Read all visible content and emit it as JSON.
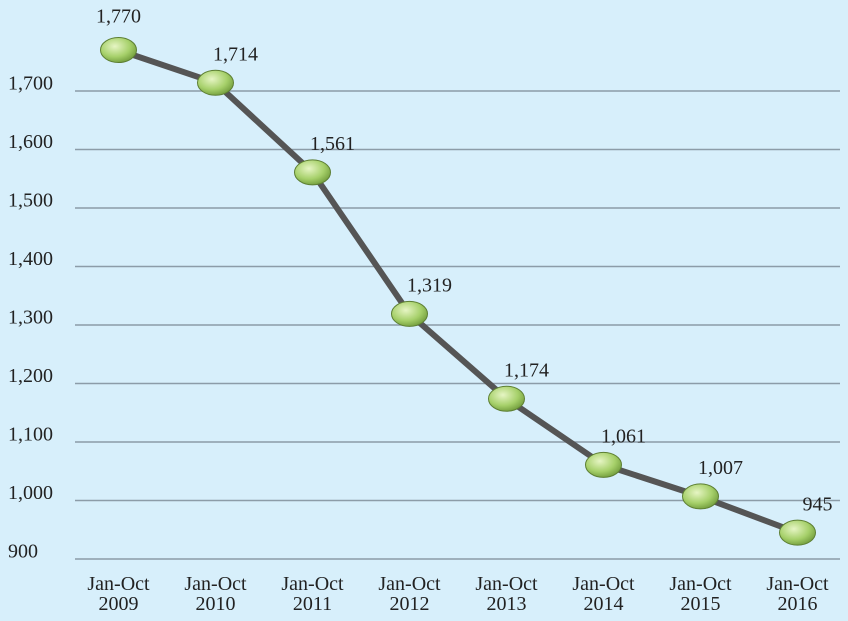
{
  "chart_data": {
    "type": "line",
    "categories": [
      "Jan-Oct 2009",
      "Jan-Oct 2010",
      "Jan-Oct 2011",
      "Jan-Oct 2012",
      "Jan-Oct 2013",
      "Jan-Oct 2014",
      "Jan-Oct 2015",
      "Jan-Oct 2016"
    ],
    "values": [
      1770,
      1714,
      1561,
      1319,
      1174,
      1061,
      1007,
      945
    ],
    "value_labels": [
      "1,770",
      "1,714",
      "1,561",
      "1,319",
      "1,174",
      "1,061",
      "1,007",
      "945"
    ],
    "color": "#555555",
    "ylim": [
      900,
      1800
    ],
    "yticks": [
      900,
      {
        "value": 1000,
        "label": "1,000"
      },
      {
        "value": 1100,
        "label": "1,100"
      },
      {
        "value": 1200,
        "label": "1,200"
      },
      {
        "value": 1300,
        "label": "1,300"
      },
      {
        "value": 1400,
        "label": "1,400"
      },
      {
        "value": 1500,
        "label": "1,500"
      },
      {
        "value": 1600,
        "label": "1,600"
      },
      {
        "value": 1700,
        "label": "1,700"
      }
    ],
    "grid": true
  }
}
